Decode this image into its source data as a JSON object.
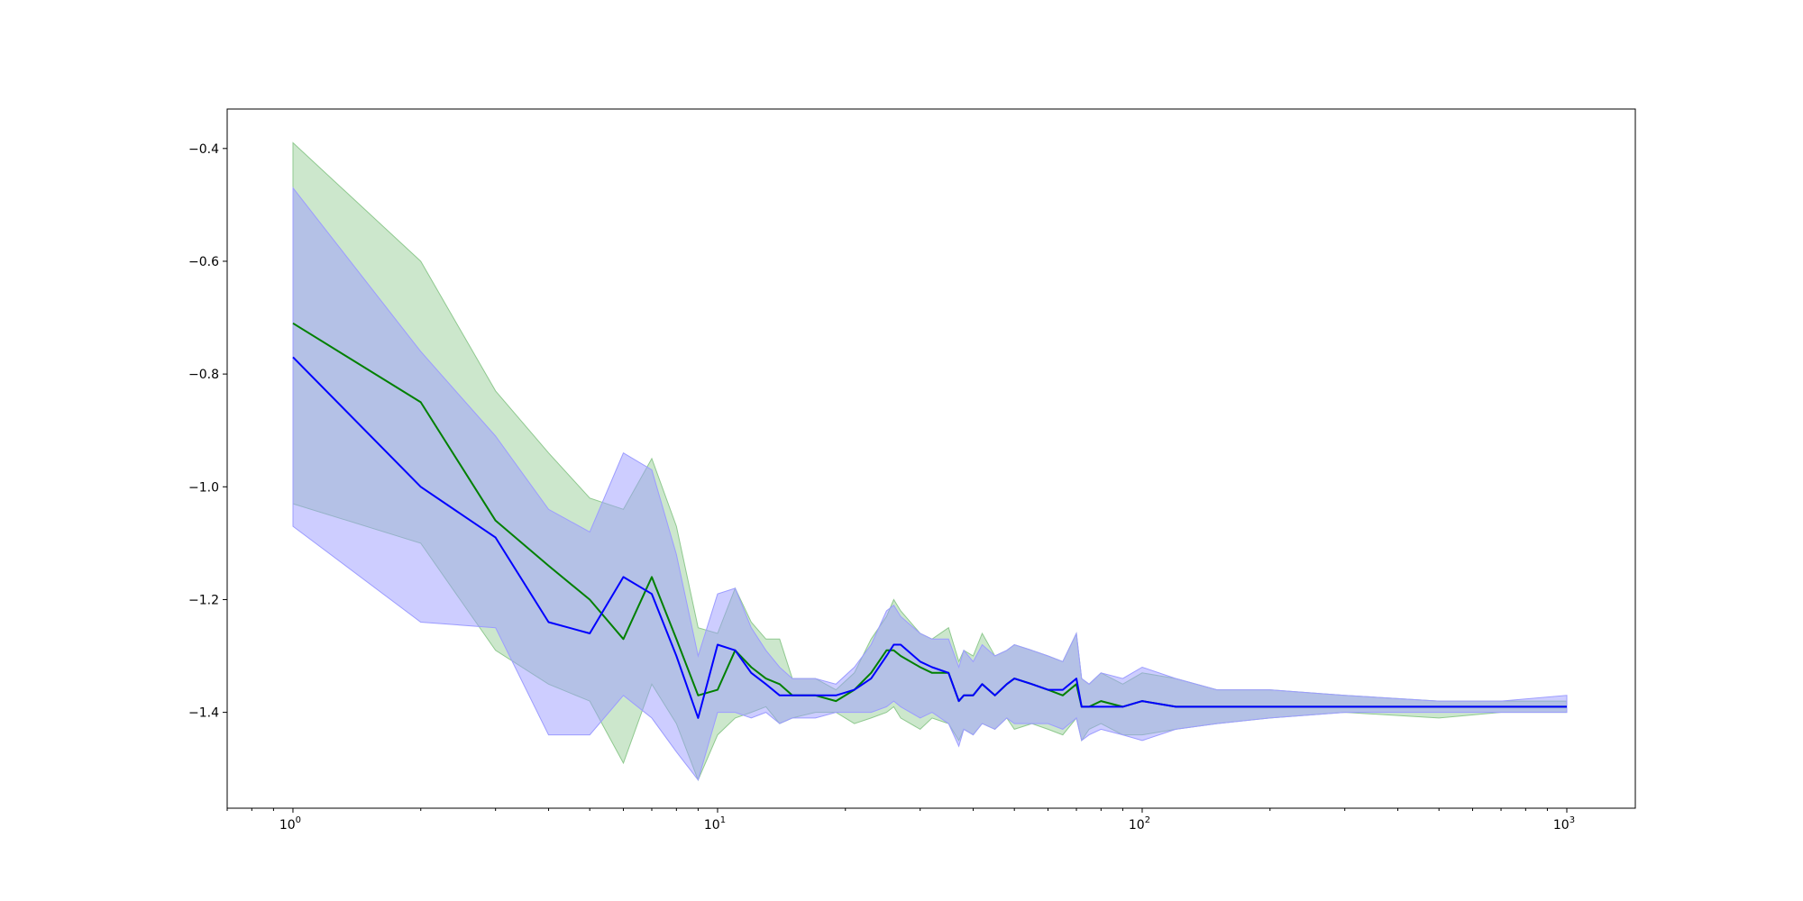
{
  "chart_data": {
    "type": "line",
    "title": "",
    "xlabel": "",
    "ylabel": "",
    "xscale": "log",
    "xlim": [
      0.7,
      1450
    ],
    "ylim": [
      -1.57,
      -0.33
    ],
    "grid": false,
    "legend": "none",
    "x_ticks": [
      {
        "base": "10",
        "exp": "0",
        "value": 1
      },
      {
        "base": "10",
        "exp": "1",
        "value": 10
      },
      {
        "base": "10",
        "exp": "2",
        "value": 100
      },
      {
        "base": "10",
        "exp": "3",
        "value": 1000
      }
    ],
    "y_ticks": [
      {
        "label": "−0.4",
        "value": -0.4
      },
      {
        "label": "−0.6",
        "value": -0.6
      },
      {
        "label": "−0.8",
        "value": -0.8
      },
      {
        "label": "−1.0",
        "value": -1.0
      },
      {
        "label": "−1.2",
        "value": -1.2
      },
      {
        "label": "−1.4",
        "value": -1.4
      }
    ],
    "series": [
      {
        "color": "#008000",
        "band_color": "#8fc98f",
        "x": [
          1,
          2,
          3,
          4,
          5,
          6,
          7,
          8,
          9,
          10,
          11,
          12,
          13,
          14,
          15,
          17,
          19,
          21,
          23,
          25,
          26,
          27,
          30,
          32,
          35,
          37,
          38,
          40,
          42,
          45,
          48,
          50,
          55,
          60,
          65,
          70,
          72,
          75,
          80,
          90,
          100,
          120,
          150,
          200,
          300,
          500,
          700,
          1000
        ],
        "y": [
          -0.71,
          -0.85,
          -1.06,
          -1.14,
          -1.2,
          -1.27,
          -1.16,
          -1.27,
          -1.37,
          -1.36,
          -1.29,
          -1.32,
          -1.34,
          -1.35,
          -1.37,
          -1.37,
          -1.38,
          -1.36,
          -1.33,
          -1.29,
          -1.29,
          -1.3,
          -1.32,
          -1.33,
          -1.33,
          -1.38,
          -1.37,
          -1.37,
          -1.35,
          -1.37,
          -1.35,
          -1.34,
          -1.35,
          -1.36,
          -1.37,
          -1.35,
          -1.39,
          -1.39,
          -1.38,
          -1.39,
          -1.38,
          -1.39,
          -1.39,
          -1.39,
          -1.39,
          -1.39,
          -1.39,
          -1.39
        ],
        "lower": [
          -1.03,
          -1.1,
          -1.29,
          -1.35,
          -1.38,
          -1.49,
          -1.35,
          -1.42,
          -1.52,
          -1.44,
          -1.41,
          -1.4,
          -1.39,
          -1.42,
          -1.41,
          -1.4,
          -1.4,
          -1.42,
          -1.41,
          -1.4,
          -1.39,
          -1.41,
          -1.43,
          -1.41,
          -1.42,
          -1.45,
          -1.43,
          -1.44,
          -1.42,
          -1.43,
          -1.41,
          -1.43,
          -1.42,
          -1.43,
          -1.44,
          -1.41,
          -1.45,
          -1.43,
          -1.42,
          -1.44,
          -1.44,
          -1.43,
          -1.42,
          -1.41,
          -1.4,
          -1.41,
          -1.4,
          -1.4
        ],
        "upper": [
          -0.39,
          -0.6,
          -0.83,
          -0.94,
          -1.02,
          -1.04,
          -0.95,
          -1.07,
          -1.25,
          -1.26,
          -1.18,
          -1.24,
          -1.27,
          -1.27,
          -1.34,
          -1.34,
          -1.36,
          -1.33,
          -1.27,
          -1.23,
          -1.2,
          -1.22,
          -1.26,
          -1.27,
          -1.25,
          -1.31,
          -1.29,
          -1.3,
          -1.26,
          -1.3,
          -1.29,
          -1.28,
          -1.29,
          -1.3,
          -1.31,
          -1.26,
          -1.34,
          -1.35,
          -1.33,
          -1.35,
          -1.33,
          -1.34,
          -1.36,
          -1.36,
          -1.37,
          -1.38,
          -1.38,
          -1.38
        ]
      },
      {
        "color": "#0000ff",
        "band_color": "#9c9cff",
        "x": [
          1,
          2,
          3,
          4,
          5,
          6,
          7,
          8,
          9,
          10,
          11,
          12,
          13,
          14,
          15,
          17,
          19,
          21,
          23,
          25,
          26,
          27,
          30,
          32,
          35,
          37,
          38,
          40,
          42,
          45,
          48,
          50,
          55,
          60,
          65,
          70,
          72,
          75,
          80,
          90,
          100,
          120,
          150,
          200,
          300,
          500,
          700,
          1000
        ],
        "y": [
          -0.77,
          -1.0,
          -1.09,
          -1.24,
          -1.26,
          -1.16,
          -1.19,
          -1.3,
          -1.41,
          -1.28,
          -1.29,
          -1.33,
          -1.35,
          -1.37,
          -1.37,
          -1.37,
          -1.37,
          -1.36,
          -1.34,
          -1.3,
          -1.28,
          -1.28,
          -1.31,
          -1.32,
          -1.33,
          -1.38,
          -1.37,
          -1.37,
          -1.35,
          -1.37,
          -1.35,
          -1.34,
          -1.35,
          -1.36,
          -1.36,
          -1.34,
          -1.39,
          -1.39,
          -1.39,
          -1.39,
          -1.38,
          -1.39,
          -1.39,
          -1.39,
          -1.39,
          -1.39,
          -1.39,
          -1.39
        ],
        "lower": [
          -1.07,
          -1.24,
          -1.25,
          -1.44,
          -1.44,
          -1.37,
          -1.41,
          -1.47,
          -1.52,
          -1.4,
          -1.4,
          -1.41,
          -1.4,
          -1.42,
          -1.41,
          -1.41,
          -1.4,
          -1.4,
          -1.4,
          -1.39,
          -1.38,
          -1.39,
          -1.41,
          -1.4,
          -1.42,
          -1.46,
          -1.43,
          -1.44,
          -1.42,
          -1.43,
          -1.41,
          -1.42,
          -1.42,
          -1.42,
          -1.43,
          -1.41,
          -1.45,
          -1.44,
          -1.43,
          -1.44,
          -1.45,
          -1.43,
          -1.42,
          -1.41,
          -1.4,
          -1.4,
          -1.4,
          -1.4
        ],
        "upper": [
          -0.47,
          -0.76,
          -0.91,
          -1.04,
          -1.08,
          -0.94,
          -0.97,
          -1.12,
          -1.3,
          -1.19,
          -1.18,
          -1.25,
          -1.29,
          -1.32,
          -1.34,
          -1.34,
          -1.35,
          -1.32,
          -1.28,
          -1.22,
          -1.21,
          -1.23,
          -1.26,
          -1.27,
          -1.27,
          -1.32,
          -1.29,
          -1.31,
          -1.28,
          -1.3,
          -1.29,
          -1.28,
          -1.29,
          -1.3,
          -1.31,
          -1.26,
          -1.34,
          -1.35,
          -1.33,
          -1.34,
          -1.32,
          -1.34,
          -1.36,
          -1.36,
          -1.37,
          -1.38,
          -1.38,
          -1.37
        ]
      }
    ]
  }
}
